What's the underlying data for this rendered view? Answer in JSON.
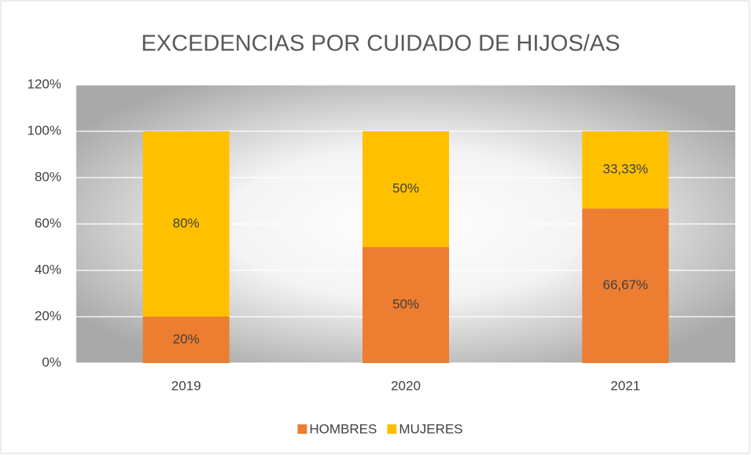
{
  "chart_data": {
    "type": "stacked_bar",
    "title": "EXCEDENCIAS POR CUIDADO DE HIJOS/AS",
    "categories": [
      "2019",
      "2020",
      "2021"
    ],
    "series": [
      {
        "name": "HOMBRES",
        "color": "#ED7D31",
        "values": [
          20,
          50,
          66.67
        ],
        "value_labels": [
          "20%",
          "50%",
          "66,67%"
        ]
      },
      {
        "name": "MUJERES",
        "color": "#FFC000",
        "values": [
          80,
          50,
          33.33
        ],
        "value_labels": [
          "80%",
          "50%",
          "33,33%"
        ]
      }
    ],
    "ylim": [
      0,
      120
    ],
    "yticks": [
      {
        "value": 0,
        "label": "0%"
      },
      {
        "value": 20,
        "label": "20%"
      },
      {
        "value": 40,
        "label": "40%"
      },
      {
        "value": 60,
        "label": "60%"
      },
      {
        "value": 80,
        "label": "80%"
      },
      {
        "value": 100,
        "label": "100%"
      },
      {
        "value": 120,
        "label": "120%"
      }
    ],
    "grid": true,
    "legend": "bottom"
  }
}
